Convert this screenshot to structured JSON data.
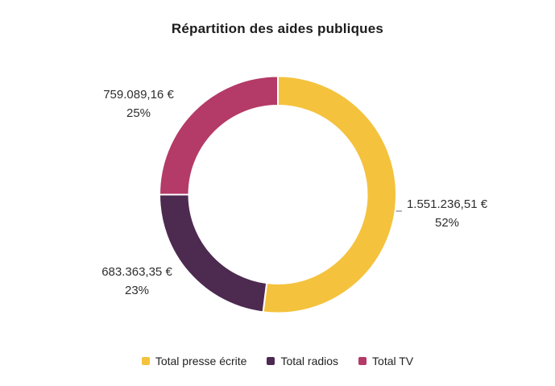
{
  "title": "Répartition des aides publiques",
  "colors": {
    "background": "#ffffff",
    "leader_line": "#98a0a8",
    "label_text": "#2e2e2e",
    "title_text": "#1d1d1d"
  },
  "chart_data": {
    "type": "pie",
    "subtype": "donut",
    "title": "Répartition des aides publiques",
    "legend_position": "bottom",
    "start_angle_deg": 0,
    "direction": "clockwise",
    "slices": [
      {
        "label": "Total presse écrite",
        "amount_label": "1.551.236,51 €",
        "percent_label": "52%",
        "value_eur": 1551236.51,
        "percent": 52,
        "color": "#F4C23D"
      },
      {
        "label": "Total radios",
        "amount_label": "683.363,35 €",
        "percent_label": "23%",
        "value_eur": 683363.35,
        "percent": 23,
        "color": "#4D2A50"
      },
      {
        "label": "Total TV",
        "amount_label": "759.089,16 €",
        "percent_label": "25%",
        "value_eur": 759089.16,
        "percent": 25,
        "color": "#B43A67"
      }
    ]
  }
}
